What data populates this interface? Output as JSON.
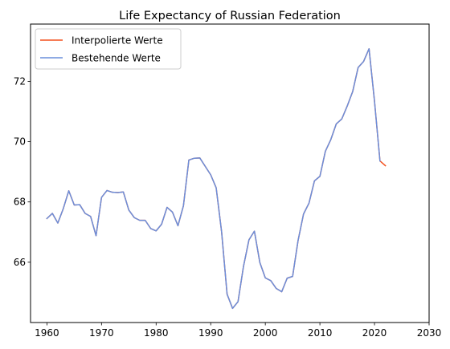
{
  "chart_data": {
    "type": "line",
    "title": "Life Expectancy of Russian Federation",
    "xlabel": "",
    "ylabel": "",
    "xlim": [
      1957,
      2030
    ],
    "ylim": [
      64.0,
      73.9
    ],
    "xticks": [
      1960,
      1970,
      1980,
      1990,
      2000,
      2010,
      2020,
      2030
    ],
    "yticks": [
      66,
      68,
      70,
      72
    ],
    "grid": false,
    "legend_position": "top-left",
    "series": [
      {
        "name": "Interpolierte Werte",
        "color": "#f4511e",
        "x": [
          1960,
          1961,
          1962,
          1963,
          1964,
          1965,
          1966,
          1967,
          1968,
          1969,
          1970,
          1971,
          1972,
          1973,
          1974,
          1975,
          1976,
          1977,
          1978,
          1979,
          1980,
          1981,
          1982,
          1983,
          1984,
          1985,
          1986,
          1987,
          1988,
          1989,
          1990,
          1991,
          1992,
          1993,
          1994,
          1995,
          1996,
          1997,
          1998,
          1999,
          2000,
          2001,
          2002,
          2003,
          2004,
          2005,
          2006,
          2007,
          2008,
          2009,
          2010,
          2011,
          2012,
          2013,
          2014,
          2015,
          2016,
          2017,
          2018,
          2019,
          2020,
          2021,
          2022
        ],
        "y": [
          67.45,
          67.62,
          67.3,
          67.78,
          68.37,
          67.9,
          67.91,
          67.62,
          67.52,
          66.88,
          68.15,
          68.38,
          68.32,
          68.31,
          68.33,
          67.73,
          67.48,
          67.39,
          67.39,
          67.12,
          67.04,
          67.26,
          67.82,
          67.66,
          67.21,
          67.87,
          69.39,
          69.45,
          69.46,
          69.18,
          68.9,
          68.47,
          67.0,
          64.94,
          64.47,
          64.69,
          65.86,
          66.74,
          67.03,
          65.99,
          65.48,
          65.39,
          65.13,
          65.02,
          65.47,
          65.53,
          66.72,
          67.6,
          67.96,
          68.7,
          68.85,
          69.68,
          70.07,
          70.59,
          70.75,
          71.18,
          71.66,
          72.46,
          72.66,
          73.08,
          71.34,
          69.36,
          69.2
        ]
      },
      {
        "name": "Bestehende Werte",
        "color": "#6a8fdc",
        "x": [
          1960,
          1961,
          1962,
          1963,
          1964,
          1965,
          1966,
          1967,
          1968,
          1969,
          1970,
          1971,
          1972,
          1973,
          1974,
          1975,
          1976,
          1977,
          1978,
          1979,
          1980,
          1981,
          1982,
          1983,
          1984,
          1985,
          1986,
          1987,
          1988,
          1989,
          1990,
          1991,
          1992,
          1993,
          1994,
          1995,
          1996,
          1997,
          1998,
          1999,
          2000,
          2001,
          2002,
          2003,
          2004,
          2005,
          2006,
          2007,
          2008,
          2009,
          2010,
          2011,
          2012,
          2013,
          2014,
          2015,
          2016,
          2017,
          2018,
          2019,
          2020,
          2021
        ],
        "y": [
          67.45,
          67.62,
          67.3,
          67.78,
          68.37,
          67.9,
          67.91,
          67.62,
          67.52,
          66.88,
          68.15,
          68.38,
          68.32,
          68.31,
          68.33,
          67.73,
          67.48,
          67.39,
          67.39,
          67.12,
          67.04,
          67.26,
          67.82,
          67.66,
          67.21,
          67.87,
          69.39,
          69.45,
          69.46,
          69.18,
          68.9,
          68.47,
          67.0,
          64.94,
          64.47,
          64.69,
          65.86,
          66.74,
          67.03,
          65.99,
          65.48,
          65.39,
          65.13,
          65.02,
          65.47,
          65.53,
          66.72,
          67.6,
          67.96,
          68.7,
          68.85,
          69.68,
          70.07,
          70.59,
          70.75,
          71.18,
          71.66,
          72.46,
          72.66,
          73.08,
          71.34,
          69.36
        ]
      }
    ]
  }
}
